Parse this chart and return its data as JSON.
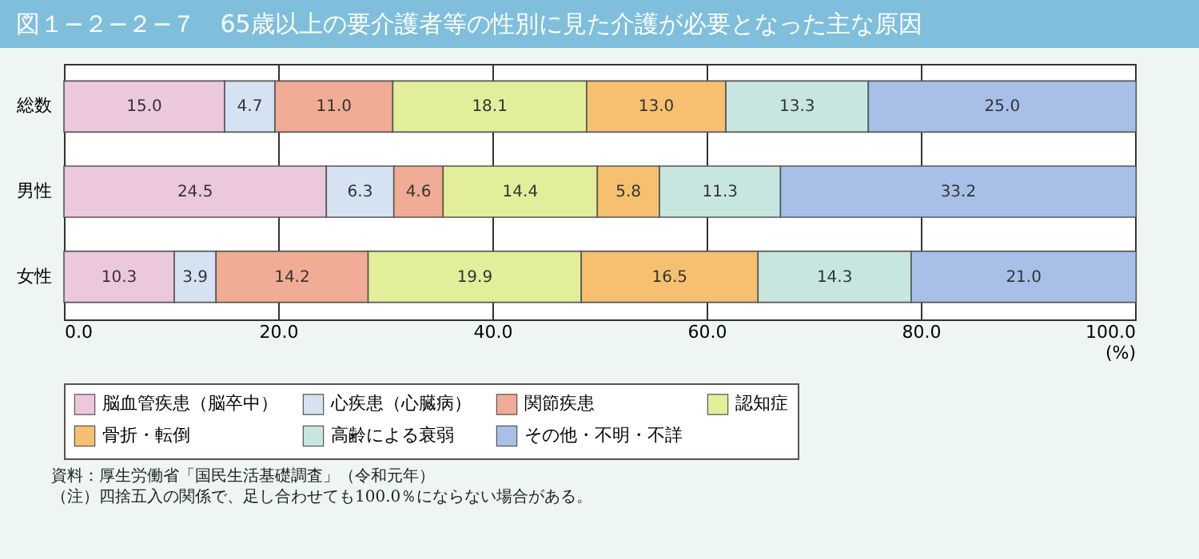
{
  "chart_data": {
    "type": "bar",
    "orientation": "horizontal",
    "stacked": true,
    "title": "図１−２−２−７　65歳以上の要介護者等の性別に見た介護が必要となった主な原因",
    "xlabel": "(%)",
    "categories": [
      "総数",
      "男性",
      "女性"
    ],
    "series": [
      {
        "name": "脳血管疾患（脳卒中）",
        "color": "#ecc8dc",
        "values": [
          15.0,
          24.5,
          10.3
        ],
        "value_labels": [
          "15.0",
          "24.5",
          "10.3"
        ]
      },
      {
        "name": "心疾患（心臓病）",
        "color": "#d4e2f2",
        "values": [
          4.7,
          6.3,
          3.9
        ],
        "value_labels": [
          "4.7",
          "6.3",
          "3.9"
        ]
      },
      {
        "name": "関節疾患",
        "color": "#f0ac94",
        "values": [
          11.0,
          4.6,
          14.2
        ],
        "value_labels": [
          "11.0",
          "4.6",
          "14.2"
        ]
      },
      {
        "name": "認知症",
        "color": "#e3ee9a",
        "values": [
          18.1,
          14.4,
          19.9
        ],
        "value_labels": [
          "18.1",
          "14.4",
          "19.9"
        ]
      },
      {
        "name": "骨折・転倒",
        "color": "#f6c070",
        "values": [
          13.0,
          5.8,
          16.5
        ],
        "value_labels": [
          "13.0",
          "5.8",
          "16.5"
        ]
      },
      {
        "name": "高齢による衰弱",
        "color": "#c8e6e0",
        "values": [
          13.3,
          11.3,
          14.3
        ],
        "value_labels": [
          "13.3",
          "11.3",
          "14.3"
        ]
      },
      {
        "name": "その他・不明・不詳",
        "color": "#a8c0e8",
        "values": [
          25.0,
          33.2,
          21.0
        ],
        "value_labels": [
          "25.0",
          "33.2",
          "21.0"
        ]
      }
    ],
    "xlim": [
      0,
      100
    ],
    "xticks": [
      {
        "value": 0,
        "label": "0.0"
      },
      {
        "value": 20,
        "label": "20.0"
      },
      {
        "value": 40,
        "label": "40.0"
      },
      {
        "value": 60,
        "label": "60.0"
      },
      {
        "value": 80,
        "label": "80.0"
      },
      {
        "value": 100,
        "label": "100.0"
      }
    ],
    "grid": "x",
    "legend": "bottom",
    "annotations": [
      "資料：厚生労働省「国民生活基礎調査」（令和元年）",
      "（注）四捨五入の関係で、足し合わせても100.0％にならない場合がある。"
    ]
  }
}
